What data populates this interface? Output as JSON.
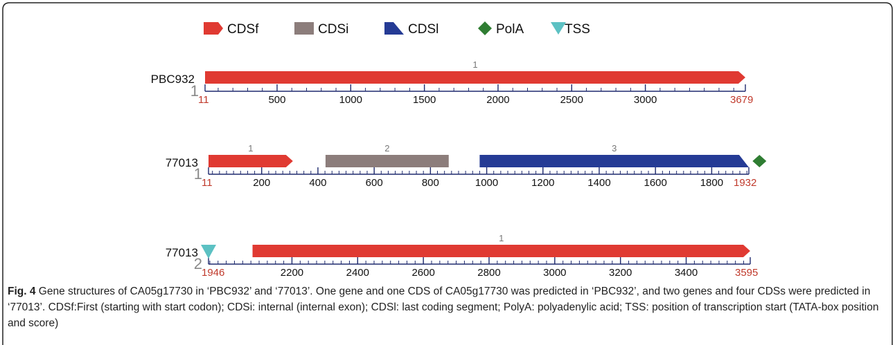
{
  "legend": [
    {
      "label": "CDSf",
      "shape": "arrow",
      "color": "#e03a32"
    },
    {
      "label": "CDSi",
      "shape": "rect",
      "color": "#8c7d7b"
    },
    {
      "label": "CDSl",
      "shape": "wedge",
      "color": "#253b95"
    },
    {
      "label": "PolA",
      "shape": "diamond",
      "color": "#2f7d32"
    },
    {
      "label": "TSS",
      "shape": "triangle-down",
      "color": "#5cc1c3"
    }
  ],
  "tracks": [
    {
      "name": "PBC932",
      "index": "1",
      "start": 11,
      "end": 3679,
      "start_label": "11",
      "end_label": "3679",
      "ticks": [
        500,
        1000,
        1500,
        2000,
        2500,
        3000
      ],
      "minor_step": 100,
      "features": [
        {
          "type": "CDSf",
          "label": "1",
          "from": 11,
          "to": 3679
        }
      ],
      "markers": []
    },
    {
      "name": "77013",
      "index": "1",
      "start": 11,
      "end": 1932,
      "start_label": "11",
      "end_label": "1932",
      "ticks": [
        200,
        400,
        600,
        800,
        1000,
        1200,
        1400,
        1600,
        1800
      ],
      "minor_step": 25,
      "features": [
        {
          "type": "CDSf",
          "label": "1",
          "from": 11,
          "to": 311
        },
        {
          "type": "CDSi",
          "label": "2",
          "from": 427,
          "to": 865
        },
        {
          "type": "CDSl",
          "label": "3",
          "from": 975,
          "to": 1932
        }
      ],
      "markers": [
        {
          "type": "PolA",
          "at": 1950
        }
      ]
    },
    {
      "name": "77013",
      "index": "2",
      "start": 1946,
      "end": 3595,
      "start_label": "1946",
      "end_label": "3595",
      "ticks": [
        2200,
        2400,
        2600,
        2800,
        3000,
        3200,
        3400
      ],
      "minor_step": 25,
      "features": [
        {
          "type": "CDSf",
          "label": "1",
          "from": 2080,
          "to": 3595
        }
      ],
      "markers": [
        {
          "type": "TSS",
          "at": 1946
        }
      ]
    }
  ],
  "colors": {
    "CDSf": "#e03a32",
    "CDSi": "#8c7d7b",
    "CDSl": "#253b95",
    "PolA": "#2f7d32",
    "TSS": "#5cc1c3",
    "axis": "#1e2a6e",
    "start_end_label": "#c0392b",
    "tick_label": "#111111",
    "index_label": "#888888",
    "feature_label": "#777777"
  },
  "caption": {
    "fig_label": "Fig. 4",
    "text": " Gene structures of CA05g17730 in ‘PBC932’ and ‘77013’. One gene and one CDS of CA05g17730 was predicted in ‘PBC932’, and two genes and four CDSs were predicted in ‘77013’. CDSf:First (starting with start codon); CDSi: internal (internal exon); CDSl: last coding segment; PolyA: polyadenylic acid; TSS: position of transcription start (TATA-box position and score)"
  }
}
